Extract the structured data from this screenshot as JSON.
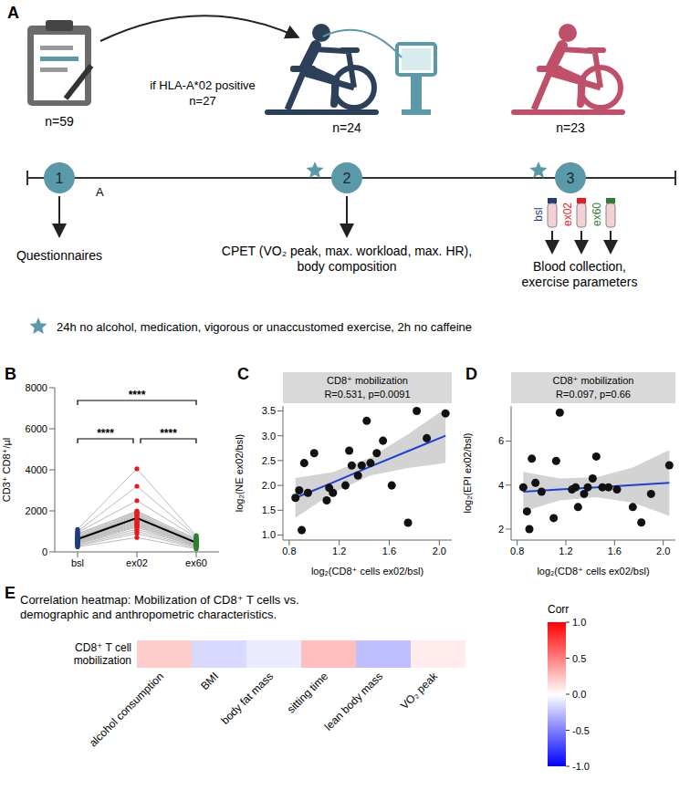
{
  "diagram": {
    "panel": "A",
    "steps": [
      {
        "number": "1",
        "n": "n=59",
        "label": "Questionnaires"
      },
      {
        "number": "2",
        "n": "n=24",
        "label": "CPET (VO₂ peak, max. workload, max. HR), body composition"
      },
      {
        "number": "3",
        "n": "n=23",
        "label": "Blood collection, exercise parameters",
        "samples": [
          "bsl",
          "ex02",
          "ex60"
        ]
      }
    ],
    "arrow_label": [
      "if HLA-A*02 positive",
      "n=27"
    ],
    "timeline_mark": "A",
    "footnote": "24h no alcohol, medication, vigorous or unaccustomed exercise, 2h no caffeine"
  },
  "chart_data": [
    {
      "panel": "B",
      "type": "line",
      "categories": [
        "bsl",
        "ex02",
        "ex60"
      ],
      "y_label": "CD3⁺ CD8⁺/µl",
      "ylim": [
        0,
        8000
      ],
      "yticks": [
        0,
        2000,
        4000,
        6000,
        8000
      ],
      "colors": [
        "#1f3d7a",
        "#e41a1c",
        "#2e7d32"
      ],
      "series": [
        {
          "color": "#bbbbbb",
          "values": [
            300,
            900,
            200
          ]
        },
        {
          "color": "#bbbbbb",
          "values": [
            350,
            1000,
            250
          ]
        },
        {
          "color": "#bbbbbb",
          "values": [
            400,
            1100,
            300
          ]
        },
        {
          "color": "#bbbbbb",
          "values": [
            420,
            1200,
            280
          ]
        },
        {
          "color": "#bbbbbb",
          "values": [
            450,
            1250,
            350
          ]
        },
        {
          "color": "#bbbbbb",
          "values": [
            480,
            1300,
            320
          ]
        },
        {
          "color": "#bbbbbb",
          "values": [
            500,
            1350,
            380
          ]
        },
        {
          "color": "#bbbbbb",
          "values": [
            520,
            1400,
            360
          ]
        },
        {
          "color": "#bbbbbb",
          "values": [
            550,
            1450,
            400
          ]
        },
        {
          "color": "#bbbbbb",
          "values": [
            580,
            1500,
            420
          ]
        },
        {
          "color": "#bbbbbb",
          "values": [
            600,
            1550,
            450
          ]
        },
        {
          "color": "#bbbbbb",
          "values": [
            620,
            1600,
            430
          ]
        },
        {
          "color": "#bbbbbb",
          "values": [
            650,
            1700,
            480
          ]
        },
        {
          "color": "#bbbbbb",
          "values": [
            680,
            1750,
            500
          ]
        },
        {
          "color": "#bbbbbb",
          "values": [
            700,
            1800,
            460
          ]
        },
        {
          "color": "#bbbbbb",
          "values": [
            750,
            1850,
            520
          ]
        },
        {
          "color": "#bbbbbb",
          "values": [
            800,
            1900,
            550
          ]
        },
        {
          "color": "#bbbbbb",
          "values": [
            850,
            2000,
            600
          ]
        },
        {
          "color": "#bbbbbb",
          "values": [
            900,
            1950,
            650
          ]
        },
        {
          "color": "#bbbbbb",
          "values": [
            950,
            2500,
            700
          ]
        },
        {
          "color": "#bbbbbb",
          "values": [
            1000,
            3200,
            750
          ]
        },
        {
          "color": "#bbbbbb",
          "values": [
            1100,
            4050,
            800
          ]
        },
        {
          "color": "#bbbbbb",
          "values": [
            250,
            700,
            150
          ]
        }
      ],
      "mean": {
        "color": "#000000",
        "values": [
          620,
          1650,
          450
        ]
      },
      "significance": [
        {
          "from": "bsl",
          "to": "ex60",
          "label": "****"
        },
        {
          "from": "bsl",
          "to": "ex02",
          "label": "****"
        },
        {
          "from": "ex02",
          "to": "ex60",
          "label": "****"
        }
      ]
    },
    {
      "panel": "C",
      "type": "scatter",
      "title": "CD8⁺ mobilization",
      "subtitle": "R=0.531, p=0.0091",
      "x_label": "log₂(CD8⁺ cells ex02/bsl)",
      "y_label": "log₂(NE ex02/bsl)",
      "xlim": [
        0.75,
        2.1
      ],
      "xticks": [
        0.8,
        1.2,
        1.6,
        {
          "value": 2,
          "label": "2.0"
        }
      ],
      "ylim": [
        0.9,
        3.6
      ],
      "yticks": [
        {
          "value": 1,
          "label": "1.0"
        },
        1.5,
        {
          "value": 2,
          "label": "2.0"
        },
        2.5,
        {
          "value": 3,
          "label": "3.0"
        },
        3.5
      ],
      "points": {
        "color": "#111111",
        "x": [
          0.85,
          0.88,
          0.9,
          0.92,
          0.95,
          1.0,
          1.1,
          1.12,
          1.15,
          1.25,
          1.28,
          1.3,
          1.35,
          1.38,
          1.42,
          1.45,
          1.5,
          1.55,
          1.62,
          1.75,
          1.82,
          1.9,
          2.05
        ],
        "y": [
          1.75,
          1.9,
          1.1,
          2.45,
          1.85,
          2.65,
          1.7,
          1.95,
          1.85,
          2.0,
          2.7,
          2.4,
          2.2,
          2.4,
          3.3,
          2.45,
          2.65,
          2.9,
          2.0,
          1.25,
          3.5,
          2.95,
          3.45
        ]
      },
      "fit": {
        "color": "#1f3fd6",
        "x": [
          0.85,
          1.15,
          1.45,
          1.75,
          2.05
        ],
        "y": [
          1.75,
          2.06,
          2.38,
          2.69,
          3.0
        ],
        "lower": [
          1.35,
          1.85,
          2.2,
          2.35,
          2.45
        ],
        "upper": [
          2.15,
          2.27,
          2.56,
          3.03,
          3.55
        ]
      }
    },
    {
      "panel": "D",
      "type": "scatter",
      "title": "CD8⁺ mobilization",
      "subtitle": "R=0.097, p=0.66",
      "x_label": "log₂(CD8⁺ cells ex02/bsl)",
      "y_label": "log₂(EPI ex02/bsl)",
      "xlim": [
        0.75,
        2.1
      ],
      "xticks": [
        0.8,
        1.2,
        1.6,
        {
          "value": 2,
          "label": "2.0"
        }
      ],
      "ylim": [
        1.5,
        7.6
      ],
      "yticks": [
        2,
        4,
        6
      ],
      "points": {
        "color": "#111111",
        "x": [
          0.85,
          0.88,
          0.9,
          0.92,
          0.95,
          1.0,
          1.1,
          1.12,
          1.15,
          1.25,
          1.28,
          1.3,
          1.35,
          1.38,
          1.42,
          1.45,
          1.5,
          1.55,
          1.62,
          1.75,
          1.82,
          1.9,
          2.05
        ],
        "y": [
          3.9,
          2.8,
          2.0,
          5.2,
          4.1,
          3.7,
          2.5,
          5.1,
          7.3,
          3.8,
          3.9,
          3.0,
          3.6,
          3.9,
          4.3,
          5.3,
          3.9,
          3.9,
          3.8,
          3.0,
          2.3,
          3.6,
          4.9
        ]
      },
      "fit": {
        "color": "#1f3fd6",
        "x": [
          0.85,
          1.15,
          1.45,
          1.75,
          2.05
        ],
        "y": [
          3.7,
          3.8,
          3.9,
          4.0,
          4.1
        ],
        "lower": [
          2.8,
          3.3,
          3.45,
          3.2,
          2.6
        ],
        "upper": [
          4.6,
          4.3,
          4.35,
          4.8,
          5.6
        ]
      }
    },
    {
      "panel": "E",
      "type": "heatmap",
      "title": "Correlation heatmap: Mobilization of CD8⁺ T cells vs. demographic and anthropometric characteristics.",
      "rows": [
        "CD8⁺ T cell mobilization"
      ],
      "columns": [
        "alcohol consumption",
        "BMI",
        "body fat mass",
        "sitting time",
        "lean body mass",
        "VO₂ peak"
      ],
      "values": [
        [
          0.2,
          -0.15,
          -0.08,
          0.25,
          -0.25,
          0.08
        ]
      ],
      "colorbar": {
        "label": "Corr",
        "range": [
          -1,
          1
        ],
        "ticks": [
          {
            "value": -1,
            "label": "-1.0"
          },
          -0.5,
          {
            "value": 0,
            "label": "0.0"
          },
          0.5,
          {
            "value": 1,
            "label": "1.0"
          }
        ],
        "colors": [
          "#0000ff",
          "#ffffff",
          "#ff0000"
        ]
      }
    }
  ]
}
